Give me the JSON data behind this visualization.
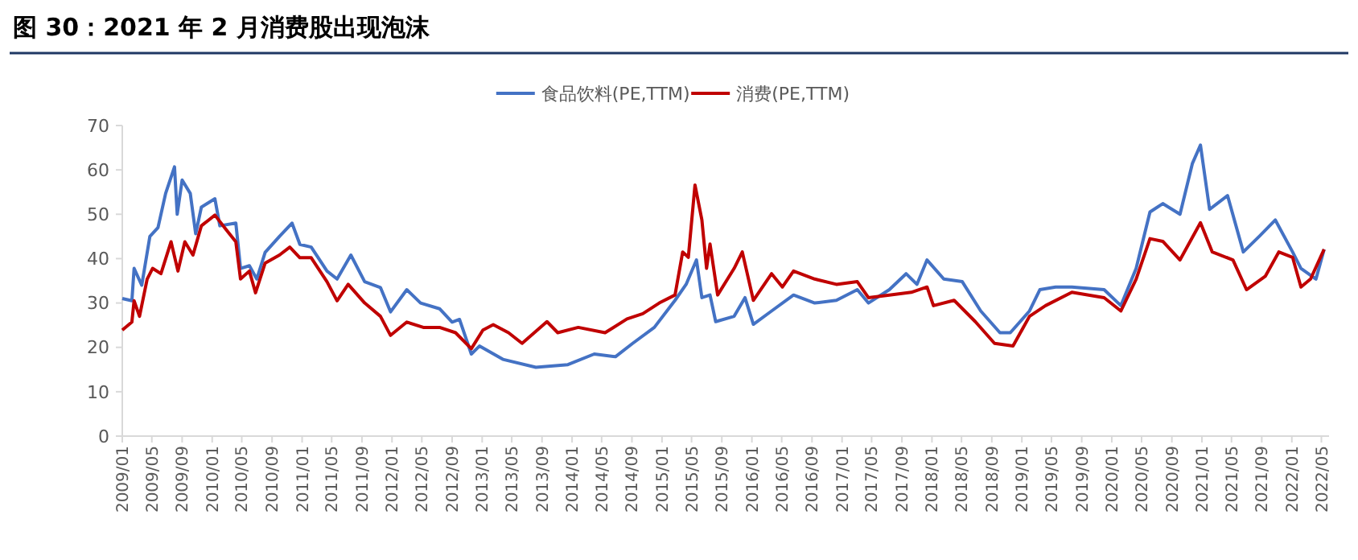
{
  "chart_data": {
    "type": "line",
    "title": "图 30：2021 年 2 月消费股出现泡沫",
    "xlim": [
      "2009-01-01",
      "2022-06-01"
    ],
    "xticks": [
      {
        "value": "2009-01",
        "label": "2009/01"
      },
      {
        "value": "2009-05",
        "label": "2009/05"
      },
      {
        "value": "2009-09",
        "label": "2009/09"
      },
      {
        "value": "2010-01",
        "label": "2010/01"
      },
      {
        "value": "2010-05",
        "label": "2010/05"
      },
      {
        "value": "2010-09",
        "label": "2010/09"
      },
      {
        "value": "2011-01",
        "label": "2011/01"
      },
      {
        "value": "2011-05",
        "label": "2011/05"
      },
      {
        "value": "2011-09",
        "label": "2011/09"
      },
      {
        "value": "2012-01",
        "label": "2012/01"
      },
      {
        "value": "2012-05",
        "label": "2012/05"
      },
      {
        "value": "2012-09",
        "label": "2012/09"
      },
      {
        "value": "2013-01",
        "label": "2013/01"
      },
      {
        "value": "2013-05",
        "label": "2013/05"
      },
      {
        "value": "2013-09",
        "label": "2013/09"
      },
      {
        "value": "2014-01",
        "label": "2014/01"
      },
      {
        "value": "2014-05",
        "label": "2014/05"
      },
      {
        "value": "2014-09",
        "label": "2014/09"
      },
      {
        "value": "2015-01",
        "label": "2015/01"
      },
      {
        "value": "2015-05",
        "label": "2015/05"
      },
      {
        "value": "2015-09",
        "label": "2015/09"
      },
      {
        "value": "2016-01",
        "label": "2016/01"
      },
      {
        "value": "2016-05",
        "label": "2016/05"
      },
      {
        "value": "2016-09",
        "label": "2016/09"
      },
      {
        "value": "2017-01",
        "label": "2017/01"
      },
      {
        "value": "2017-05",
        "label": "2017/05"
      },
      {
        "value": "2017-09",
        "label": "2017/09"
      },
      {
        "value": "2018-01",
        "label": "2018/01"
      },
      {
        "value": "2018-05",
        "label": "2018/05"
      },
      {
        "value": "2018-09",
        "label": "2018/09"
      },
      {
        "value": "2019-01",
        "label": "2019/01"
      },
      {
        "value": "2019-05",
        "label": "2019/05"
      },
      {
        "value": "2019-09",
        "label": "2019/09"
      },
      {
        "value": "2020-01",
        "label": "2020/01"
      },
      {
        "value": "2020-05",
        "label": "2020/05"
      },
      {
        "value": "2020-09",
        "label": "2020/09"
      },
      {
        "value": "2021-01",
        "label": "2021/01"
      },
      {
        "value": "2021-05",
        "label": "2021/05"
      },
      {
        "value": "2021-09",
        "label": "2021/09"
      },
      {
        "value": "2022-01",
        "label": "2022/01"
      },
      {
        "value": "2022-05",
        "label": "2022/05"
      }
    ],
    "ylim": [
      0,
      70
    ],
    "yticks": [
      0,
      10,
      20,
      30,
      40,
      50,
      60,
      70
    ],
    "grid": false,
    "legend": "top",
    "marker": "none",
    "line_style": "solid",
    "series": [
      {
        "name": "食品饮料(PE,TTM)",
        "color": "#4472c4",
        "x": [
          "2009-01-01",
          "2009-02-09",
          "2009-02-18",
          "2009-03-21",
          "2009-04-23",
          "2009-05-26",
          "2009-06-26",
          "2009-08-01",
          "2009-08-12",
          "2009-09-01",
          "2009-10-04",
          "2009-10-26",
          "2009-11-18",
          "2010-01-12",
          "2010-02-01",
          "2010-04-07",
          "2010-04-26",
          "2010-06-01",
          "2010-07-01",
          "2010-08-04",
          "2010-10-01",
          "2010-11-21",
          "2010-12-23",
          "2011-02-07",
          "2011-04-12",
          "2011-05-23",
          "2011-07-18",
          "2011-09-12",
          "2011-11-15",
          "2011-12-26",
          "2012-03-01",
          "2012-04-26",
          "2012-07-12",
          "2012-09-01",
          "2012-10-01",
          "2012-11-18",
          "2012-12-21",
          "2013-03-26",
          "2013-08-07",
          "2013-12-15",
          "2014-04-01",
          "2014-06-26",
          "2014-09-04",
          "2014-12-01",
          "2015-02-23",
          "2015-04-09",
          "2015-05-21",
          "2015-06-12",
          "2015-07-15",
          "2015-08-07",
          "2015-10-21",
          "2015-12-04",
          "2016-01-07",
          "2016-03-21",
          "2016-06-18",
          "2016-09-12",
          "2016-12-09",
          "2017-03-04",
          "2017-04-18",
          "2017-07-12",
          "2017-09-18",
          "2017-11-01",
          "2017-12-12",
          "2018-02-18",
          "2018-05-04",
          "2018-07-18",
          "2018-10-04",
          "2018-11-15",
          "2019-02-01",
          "2019-03-15",
          "2019-05-18",
          "2019-07-23",
          "2019-12-01",
          "2020-02-07",
          "2020-04-09",
          "2020-06-04",
          "2020-07-26",
          "2020-10-04",
          "2020-11-23",
          "2020-12-26",
          "2021-02-01",
          "2021-04-15",
          "2021-06-18",
          "2021-08-23",
          "2021-10-26",
          "2022-01-04",
          "2022-02-07",
          "2022-04-09",
          "2022-05-12"
        ],
        "values": [
          31,
          30.5,
          37.8,
          34,
          45,
          47,
          54.7,
          60.7,
          50,
          57.7,
          54.7,
          45.6,
          51.6,
          53.5,
          47.4,
          48,
          37.8,
          38.4,
          35.4,
          41.4,
          45,
          48,
          43.2,
          42.6,
          37.2,
          35.4,
          40.8,
          34.8,
          33.5,
          28,
          33,
          30,
          28.7,
          25.7,
          26.3,
          18.5,
          20.3,
          17.3,
          15.5,
          16.1,
          18.5,
          17.9,
          20.9,
          24.5,
          30.6,
          34.2,
          39.7,
          31.2,
          31.8,
          25.8,
          27,
          31.2,
          25.2,
          28.2,
          31.8,
          30,
          30.6,
          33,
          30,
          33,
          36.6,
          34.2,
          39.7,
          35.4,
          34.8,
          28.2,
          23.3,
          23.3,
          28.2,
          33,
          33.6,
          33.6,
          33,
          29.4,
          37.8,
          50.5,
          52.4,
          50,
          61.4,
          65.6,
          51.1,
          54.2,
          41.5,
          45.1,
          48.7,
          41.5,
          37.8,
          35.4,
          42.1
        ]
      },
      {
        "name": "消费(PE,TTM)",
        "color": "#c00000",
        "x": [
          "2009-01-01",
          "2009-02-09",
          "2009-02-18",
          "2009-03-12",
          "2009-04-12",
          "2009-05-04",
          "2009-06-07",
          "2009-07-18",
          "2009-08-15",
          "2009-09-12",
          "2009-10-15",
          "2009-11-18",
          "2010-01-12",
          "2010-02-23",
          "2010-04-07",
          "2010-04-26",
          "2010-06-01",
          "2010-06-26",
          "2010-08-04",
          "2010-10-01",
          "2010-11-12",
          "2010-12-23",
          "2011-02-07",
          "2011-04-12",
          "2011-05-23",
          "2011-07-07",
          "2011-09-12",
          "2011-11-15",
          "2011-12-26",
          "2012-03-01",
          "2012-05-07",
          "2012-07-12",
          "2012-09-15",
          "2012-11-18",
          "2013-01-04",
          "2013-02-15",
          "2013-04-18",
          "2013-06-12",
          "2013-09-21",
          "2013-11-04",
          "2014-01-26",
          "2014-05-15",
          "2014-08-12",
          "2014-10-15",
          "2014-12-21",
          "2015-02-23",
          "2015-03-26",
          "2015-04-18",
          "2015-05-15",
          "2015-06-12",
          "2015-07-01",
          "2015-07-15",
          "2015-08-15",
          "2015-10-21",
          "2015-11-23",
          "2016-01-07",
          "2016-03-21",
          "2016-05-04",
          "2016-06-18",
          "2016-09-12",
          "2016-12-09",
          "2017-03-04",
          "2017-04-18",
          "2017-07-12",
          "2017-10-09",
          "2017-12-12",
          "2018-01-07",
          "2018-04-01",
          "2018-06-26",
          "2018-09-12",
          "2018-11-26",
          "2019-02-01",
          "2019-04-07",
          "2019-07-23",
          "2019-12-01",
          "2020-02-07",
          "2020-04-09",
          "2020-06-04",
          "2020-07-26",
          "2020-10-04",
          "2020-12-26",
          "2021-02-12",
          "2021-05-07",
          "2021-07-01",
          "2021-09-15",
          "2021-11-09",
          "2022-01-04",
          "2022-02-07",
          "2022-03-18",
          "2022-05-12"
        ],
        "values": [
          23.9,
          25.7,
          30.5,
          27,
          35.4,
          37.8,
          36.6,
          43.8,
          37.2,
          43.8,
          40.8,
          47.4,
          49.8,
          46.8,
          43.8,
          35.4,
          37.2,
          32.3,
          39,
          40.8,
          42.6,
          40.2,
          40.2,
          34.8,
          30.5,
          34.2,
          30,
          27,
          22.7,
          25.7,
          24.5,
          24.5,
          23.3,
          19.7,
          23.9,
          25.1,
          23.3,
          20.9,
          25.8,
          23.3,
          24.5,
          23.3,
          26.4,
          27.6,
          30,
          31.8,
          41.5,
          40.3,
          56.6,
          48.7,
          37.8,
          43.3,
          31.8,
          37.8,
          41.5,
          30.6,
          36.6,
          33.6,
          37.2,
          35.4,
          34.2,
          34.8,
          31.2,
          31.8,
          32.4,
          33.6,
          29.4,
          30.6,
          25.8,
          20.9,
          20.3,
          27,
          29.4,
          32.4,
          31.2,
          28.2,
          35.4,
          44.5,
          43.9,
          39.7,
          48.1,
          41.5,
          39.7,
          33,
          36,
          41.5,
          40.3,
          33.6,
          35.4,
          42.1
        ]
      }
    ]
  }
}
